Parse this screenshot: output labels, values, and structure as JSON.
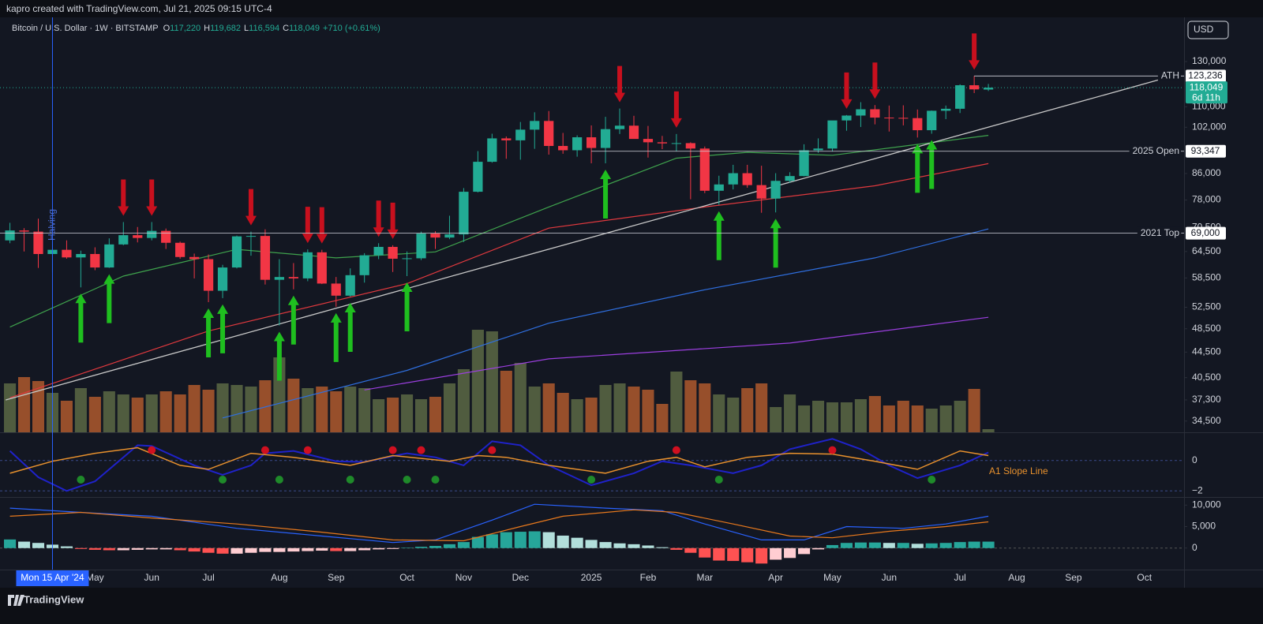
{
  "attribution": "kapro created with TradingView.com, Jul 21, 2025 09:15 UTC-4",
  "symbol": "Bitcoin / U.S. Dollar · 1W · BITSTAMP",
  "ohlc": [
    {
      "key": "O",
      "value": "117,220"
    },
    {
      "key": "H",
      "value": "119,682"
    },
    {
      "key": "L",
      "value": "116,594"
    },
    {
      "key": "C",
      "value": "118,049"
    }
  ],
  "change": "+710 (+0.61%)",
  "currency": "USD",
  "brand": "TradingView",
  "chart_data": {
    "type": "candlestick",
    "log": true,
    "xlim": [
      -0.7,
      82.8
    ],
    "xticks": [
      {
        "value": 6,
        "label": "May"
      },
      {
        "value": 10,
        "label": "Jun"
      },
      {
        "value": 14,
        "label": "Jul"
      },
      {
        "value": 19,
        "label": "Aug"
      },
      {
        "value": 23,
        "label": "Sep"
      },
      {
        "value": 28,
        "label": "Oct"
      },
      {
        "value": 32,
        "label": "Nov"
      },
      {
        "value": 36,
        "label": "Dec"
      },
      {
        "value": 41,
        "label": "2025"
      },
      {
        "value": 45,
        "label": "Feb"
      },
      {
        "value": 49,
        "label": "Mar"
      },
      {
        "value": 54,
        "label": "Apr"
      },
      {
        "value": 58,
        "label": "May"
      },
      {
        "value": 62,
        "label": "Jun"
      },
      {
        "value": 67,
        "label": "Jul"
      },
      {
        "value": 71,
        "label": "Aug"
      },
      {
        "value": 75,
        "label": "Sep"
      },
      {
        "value": 80,
        "label": "Oct"
      }
    ],
    "ylim": [
      33100,
      153000
    ],
    "yticks": [
      {
        "value": 130000,
        "label": "130,000"
      },
      {
        "value": 110000,
        "label": "110,000"
      },
      {
        "value": 102000,
        "label": "102,000"
      },
      {
        "value": 86000,
        "label": "86,000"
      },
      {
        "value": 78000,
        "label": "78,000"
      },
      {
        "value": 70500,
        "label": "70,500"
      },
      {
        "value": 64500,
        "label": "64,500"
      },
      {
        "value": 58500,
        "label": "58,500"
      },
      {
        "value": 52500,
        "label": "52,500"
      },
      {
        "value": 48500,
        "label": "48,500"
      },
      {
        "value": 44500,
        "label": "44,500"
      },
      {
        "value": 40500,
        "label": "40,500"
      },
      {
        "value": 37300,
        "label": "37,300"
      },
      {
        "value": 34500,
        "label": "34,500"
      }
    ],
    "up_color": "#22ab94",
    "down_color": "#f23645",
    "open": [
      67200,
      69700,
      69400,
      63900,
      64900,
      63100,
      63900,
      60800,
      66200,
      68500,
      67800,
      69600,
      66600,
      63200,
      62700,
      55800,
      60800,
      68200,
      68300,
      58100,
      58700,
      58400,
      64300,
      57300,
      54800,
      59100,
      63600,
      65600,
      62800,
      62900,
      68900,
      67900,
      68700,
      80400,
      89800,
      97900,
      97200,
      101100,
      104400,
      95200,
      93700,
      98300,
      94500,
      101300,
      102600,
      97700,
      96500,
      96100,
      96200,
      94300,
      80700,
      82600,
      86100,
      82400,
      78400,
      83700,
      85200,
      93700,
      94300,
      104600,
      106500,
      109000,
      105700,
      105600,
      105500,
      100900,
      108400,
      109200,
      119100,
      117220
    ],
    "high": [
      71700,
      70300,
      72800,
      66900,
      67200,
      64700,
      65500,
      67700,
      71900,
      70600,
      71900,
      70200,
      66900,
      64000,
      63800,
      61400,
      68400,
      69400,
      70000,
      62700,
      61800,
      65000,
      64900,
      58700,
      60600,
      64100,
      66500,
      66000,
      64500,
      69400,
      69500,
      73600,
      81500,
      93400,
      99600,
      98600,
      104000,
      107800,
      108300,
      99900,
      99000,
      102700,
      106000,
      109300,
      106400,
      102500,
      98800,
      99500,
      96500,
      95000,
      85300,
      88800,
      88800,
      88500,
      86100,
      86400,
      95800,
      97900,
      104300,
      106700,
      111900,
      110700,
      110500,
      110600,
      108900,
      108500,
      110500,
      119500,
      123236,
      119682
    ],
    "low": [
      66500,
      64500,
      60700,
      59700,
      62800,
      56500,
      60200,
      60700,
      66000,
      66700,
      67200,
      65100,
      62800,
      58400,
      53500,
      54300,
      60600,
      63500,
      57100,
      49100,
      56100,
      57800,
      57200,
      52600,
      54600,
      57500,
      62700,
      59800,
      58900,
      62500,
      65100,
      67500,
      66800,
      80200,
      89500,
      90800,
      90500,
      94200,
      92200,
      92500,
      91500,
      89300,
      89300,
      99500,
      97800,
      91200,
      94100,
      93400,
      78200,
      80000,
      76600,
      81100,
      81600,
      74400,
      74500,
      83100,
      85100,
      92800,
      93400,
      100700,
      102100,
      103100,
      100400,
      102700,
      98200,
      99600,
      105100,
      107500,
      115700,
      116594
    ],
    "close": [
      69700,
      69400,
      63900,
      64900,
      63100,
      63900,
      60800,
      66200,
      68500,
      67800,
      69600,
      66600,
      63200,
      62700,
      55800,
      60800,
      68200,
      68300,
      58100,
      58700,
      58400,
      64300,
      57300,
      54800,
      59100,
      63600,
      65600,
      62800,
      62900,
      68900,
      67900,
      68700,
      80400,
      89800,
      97900,
      97200,
      101100,
      104400,
      95200,
      93700,
      98300,
      94500,
      101300,
      102600,
      97700,
      96500,
      96100,
      96200,
      94300,
      80700,
      82600,
      86100,
      82400,
      78400,
      83700,
      85200,
      93700,
      94300,
      104600,
      106500,
      109000,
      105700,
      105600,
      105500,
      100900,
      108400,
      109200,
      119100,
      117300,
      118049
    ],
    "last_label": "118,049",
    "countdown": "6d 11h",
    "volume": [
      62,
      70,
      65,
      50,
      40,
      56,
      45,
      52,
      48,
      44,
      48,
      52,
      48,
      60,
      54,
      62,
      60,
      58,
      66,
      95,
      68,
      56,
      58,
      52,
      58,
      56,
      42,
      44,
      48,
      42,
      45,
      62,
      80,
      130,
      128,
      78,
      88,
      58,
      62,
      50,
      42,
      44,
      60,
      62,
      58,
      54,
      36,
      77,
      66,
      62,
      48,
      44,
      56,
      62,
      32,
      48,
      34,
      40,
      38,
      38,
      42,
      46,
      34,
      40,
      34,
      30,
      34,
      40,
      55,
      4
    ],
    "volume_up_color": "#66744a",
    "volume_down_color": "#c4632f",
    "moving_averages": [
      {
        "color": "#3fa34d",
        "x": [
          0,
          8,
          16,
          23,
          30,
          38,
          47,
          52,
          58,
          69
        ],
        "values": [
          48800,
          58900,
          65000,
          63000,
          64400,
          76000,
          91000,
          93000,
          92000,
          99000
        ]
      },
      {
        "color": "#e0393e",
        "x": [
          0,
          14,
          28,
          38,
          49,
          61,
          69
        ],
        "values": [
          37600,
          48100,
          57300,
          70300,
          76000,
          82200,
          89200
        ]
      },
      {
        "color": "#2f6fe0",
        "x": [
          15,
          28,
          38,
          49,
          61,
          69
        ],
        "values": [
          34900,
          41600,
          49500,
          56000,
          63000,
          70100
        ]
      },
      {
        "color": "#9c3fe0",
        "x": [
          25,
          38,
          55,
          69
        ],
        "values": [
          38700,
          43400,
          46000,
          50600
        ]
      }
    ],
    "trendline": {
      "color": "#c8c8c8",
      "x": [
        -0.3,
        81.7
      ],
      "values": [
        37300,
        122700
      ]
    },
    "levels": [
      {
        "label": "ATH",
        "value": 123236,
        "value_label": "123,236",
        "from": 68
      },
      {
        "label": "2025 Open",
        "value": 93347,
        "value_label": "93,347",
        "from": 41
      },
      {
        "label": "2021 Top",
        "value": 69000,
        "value_label": "69,000",
        "from": -0.7
      }
    ],
    "buy_signals": [
      5,
      7,
      14,
      15,
      19,
      20,
      23,
      24,
      28,
      42,
      50,
      54,
      64,
      65
    ],
    "buy_color": "#1fbf1f",
    "sell_signals": [
      8,
      10,
      17,
      21,
      22,
      26,
      27,
      43,
      47,
      59,
      61,
      68
    ],
    "sell_color": "#c8101e",
    "halving": {
      "x": 3,
      "label": "Halving"
    },
    "crosshair_label": "Mon 15 Apr '24",
    "oscillator": {
      "ylim": [
        -2.4,
        1.8
      ],
      "yticks": [
        0,
        {
          "value": -2,
          "label": "−2"
        }
      ],
      "label": "A1 Slope Line",
      "lines": [
        {
          "color": "#1f22c9",
          "x": [
            0,
            2,
            4,
            6,
            9,
            10,
            13,
            15,
            17,
            18,
            20,
            23,
            25,
            28,
            30,
            32,
            34,
            36,
            38,
            41,
            44,
            46,
            48,
            51,
            53,
            55,
            58,
            60,
            62,
            64,
            67,
            69
          ],
          "values": [
            0.63,
            -1.1,
            -2.0,
            -1.37,
            1.0,
            0.95,
            -0.32,
            -0.95,
            -0.32,
            0.47,
            0.63,
            -0.05,
            -0.1,
            0.47,
            0.21,
            -0.32,
            1.26,
            1.0,
            -0.32,
            -1.63,
            -0.84,
            -0.05,
            -0.32,
            -0.84,
            -0.32,
            0.74,
            1.42,
            0.74,
            -0.32,
            -1.16,
            -0.32,
            0.53
          ]
        },
        {
          "color": "#e8912d",
          "x": [
            0,
            3,
            6,
            9,
            12,
            14,
            17,
            20,
            24,
            27,
            31,
            33,
            35,
            38,
            42,
            45,
            47,
            49,
            52,
            55,
            58,
            61,
            64,
            67,
            69
          ],
          "values": [
            -0.84,
            -0.05,
            0.47,
            0.84,
            -0.32,
            -0.58,
            0.47,
            0.21,
            -0.32,
            0.32,
            -0.05,
            0.32,
            0.21,
            -0.32,
            -0.84,
            -0.05,
            0.21,
            -0.42,
            0.21,
            0.47,
            0.42,
            -0.05,
            -0.58,
            0.63,
            0.32
          ]
        }
      ],
      "dots": [
        {
          "color": "#d01020",
          "x": [
            10,
            18,
            21,
            27,
            29,
            34,
            47,
            58
          ],
          "values": [
            0.68,
            0.68,
            0.68,
            0.68,
            0.68,
            0.68,
            0.68,
            0.68
          ]
        },
        {
          "color": "#1f8a2a",
          "x": [
            5,
            15,
            19,
            24,
            28,
            30,
            41,
            50,
            65
          ],
          "values": [
            -1.26,
            -1.26,
            -1.26,
            -1.26,
            -1.26,
            -1.26,
            -1.26,
            -1.26,
            -1.26
          ]
        }
      ]
    },
    "macd": {
      "ylim": [
        -5000,
        11700
      ],
      "yticks": [
        {
          "value": 10000,
          "label": "10,000"
        },
        {
          "value": 5000,
          "label": "5,000"
        },
        0
      ],
      "histogram": [
        2000,
        1500,
        1200,
        800,
        400,
        -200,
        -400,
        -500,
        -500,
        -400,
        -300,
        -300,
        -500,
        -800,
        -1100,
        -1300,
        -1300,
        -1100,
        -900,
        -900,
        -800,
        -700,
        -600,
        -700,
        -700,
        -500,
        -300,
        -200,
        100,
        300,
        500,
        900,
        1400,
        2600,
        3200,
        3700,
        3800,
        3900,
        3700,
        2900,
        2400,
        1900,
        1400,
        1100,
        900,
        600,
        200,
        -400,
        -1100,
        -2200,
        -2900,
        -3000,
        -3300,
        -3600,
        -2700,
        -2300,
        -1400,
        -300,
        700,
        1200,
        1300,
        1300,
        1200,
        1200,
        1000,
        1100,
        1200,
        1400,
        1500,
        1500
      ],
      "hist_colors": [
        "#26a69a",
        "#b2dfdb",
        "#ff5252",
        "#ffcdd2"
      ],
      "lines": [
        {
          "color": "#2962ff",
          "x": [
            0,
            5,
            10,
            16,
            22,
            27,
            30,
            34,
            37,
            42,
            46,
            49,
            53,
            56,
            59,
            63,
            66,
            69
          ],
          "values": [
            9300,
            8300,
            7400,
            4600,
            2800,
            1300,
            1900,
            6500,
            10200,
            9300,
            8700,
            5600,
            1900,
            1900,
            5000,
            4600,
            5600,
            7400
          ]
        },
        {
          "color": "#e8791d",
          "x": [
            0,
            5,
            10,
            16,
            22,
            27,
            32,
            36,
            39,
            44,
            47,
            51,
            55,
            58,
            62,
            66,
            69
          ],
          "values": [
            7400,
            8300,
            7000,
            5600,
            3700,
            1900,
            1700,
            5000,
            7400,
            8900,
            8300,
            5600,
            2800,
            2400,
            3900,
            5000,
            6100
          ]
        }
      ]
    }
  }
}
